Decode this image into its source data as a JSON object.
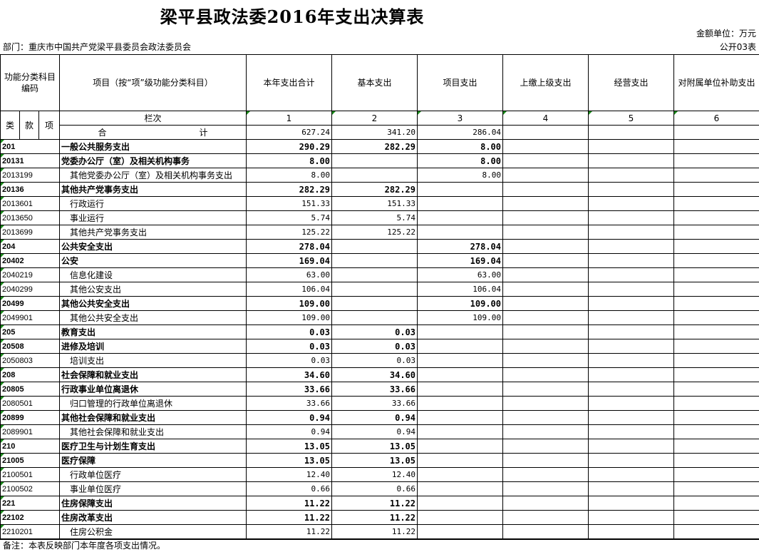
{
  "title": "梁平县政法委2016年支出决算表",
  "unit": "金额单位：万元",
  "department": "部门：重庆市中国共产党梁平县委员会政法委员会",
  "table_no": "公开03表",
  "headers": {
    "code": "功能分类科目编码",
    "item": "项目（按“项”级功能分类科目）",
    "total": "本年支出合计",
    "basic": "基本支出",
    "project": "项目支出",
    "upper": "上缴上级支出",
    "business": "经营支出",
    "subsidy": "对附属单位补助支出"
  },
  "sub": {
    "lei": "类",
    "kuan": "款",
    "xiang": "项",
    "col_label": "栏次",
    "c1": "1",
    "c2": "2",
    "c3": "3",
    "c4": "4",
    "c5": "5",
    "c6": "6",
    "sum_a": "合",
    "sum_b": "计",
    "sum_total": "627.24",
    "sum_basic": "341.20",
    "sum_project": "286.04"
  },
  "rows": [
    {
      "code": "201",
      "name": "一般公共服务支出",
      "total": "290.29",
      "basic": "282.29",
      "project": "8.00",
      "bold": true
    },
    {
      "code": "20131",
      "name": "党委办公厅（室）及相关机构事务",
      "total": "8.00",
      "basic": "",
      "project": "8.00",
      "bold": true
    },
    {
      "code": "2013199",
      "name": "其他党委办公厅（室）及相关机构事务支出",
      "total": "8.00",
      "basic": "",
      "project": "8.00"
    },
    {
      "code": "20136",
      "name": "其他共产党事务支出",
      "total": "282.29",
      "basic": "282.29",
      "project": "",
      "bold": true
    },
    {
      "code": "2013601",
      "name": "行政运行",
      "total": "151.33",
      "basic": "151.33",
      "project": ""
    },
    {
      "code": "2013650",
      "name": "事业运行",
      "total": "5.74",
      "basic": "5.74",
      "project": ""
    },
    {
      "code": "2013699",
      "name": "其他共产党事务支出",
      "total": "125.22",
      "basic": "125.22",
      "project": ""
    },
    {
      "code": "204",
      "name": "公共安全支出",
      "total": "278.04",
      "basic": "",
      "project": "278.04",
      "bold": true
    },
    {
      "code": "20402",
      "name": "公安",
      "total": "169.04",
      "basic": "",
      "project": "169.04",
      "bold": true
    },
    {
      "code": "2040219",
      "name": "信息化建设",
      "total": "63.00",
      "basic": "",
      "project": "63.00"
    },
    {
      "code": "2040299",
      "name": "其他公安支出",
      "total": "106.04",
      "basic": "",
      "project": "106.04"
    },
    {
      "code": "20499",
      "name": "其他公共安全支出",
      "total": "109.00",
      "basic": "",
      "project": "109.00",
      "bold": true
    },
    {
      "code": "2049901",
      "name": "其他公共安全支出",
      "total": "109.00",
      "basic": "",
      "project": "109.00"
    },
    {
      "code": "205",
      "name": "教育支出",
      "total": "0.03",
      "basic": "0.03",
      "project": "",
      "bold": true
    },
    {
      "code": "20508",
      "name": "进修及培训",
      "total": "0.03",
      "basic": "0.03",
      "project": "",
      "bold": true
    },
    {
      "code": "2050803",
      "name": "培训支出",
      "total": "0.03",
      "basic": "0.03",
      "project": ""
    },
    {
      "code": "208",
      "name": "社会保障和就业支出",
      "total": "34.60",
      "basic": "34.60",
      "project": "",
      "bold": true
    },
    {
      "code": "20805",
      "name": "行政事业单位离退休",
      "total": "33.66",
      "basic": "33.66",
      "project": "",
      "bold": true
    },
    {
      "code": "2080501",
      "name": "归口管理的行政单位离退休",
      "total": "33.66",
      "basic": "33.66",
      "project": ""
    },
    {
      "code": "20899",
      "name": "其他社会保障和就业支出",
      "total": "0.94",
      "basic": "0.94",
      "project": "",
      "bold": true
    },
    {
      "code": "2089901",
      "name": "其他社会保障和就业支出",
      "total": "0.94",
      "basic": "0.94",
      "project": ""
    },
    {
      "code": "210",
      "name": "医疗卫生与计划生育支出",
      "total": "13.05",
      "basic": "13.05",
      "project": "",
      "bold": true
    },
    {
      "code": "21005",
      "name": "医疗保障",
      "total": "13.05",
      "basic": "13.05",
      "project": "",
      "bold": true
    },
    {
      "code": "2100501",
      "name": "行政单位医疗",
      "total": "12.40",
      "basic": "12.40",
      "project": ""
    },
    {
      "code": "2100502",
      "name": "事业单位医疗",
      "total": "0.66",
      "basic": "0.66",
      "project": ""
    },
    {
      "code": "221",
      "name": "住房保障支出",
      "total": "11.22",
      "basic": "11.22",
      "project": "",
      "bold": true
    },
    {
      "code": "22102",
      "name": "住房改革支出",
      "total": "11.22",
      "basic": "11.22",
      "project": "",
      "bold": true
    },
    {
      "code": "2210201",
      "name": "住房公积金",
      "total": "11.22",
      "basic": "11.22",
      "project": ""
    }
  ],
  "note": "备注：本表反映部门本年度各项支出情况。"
}
